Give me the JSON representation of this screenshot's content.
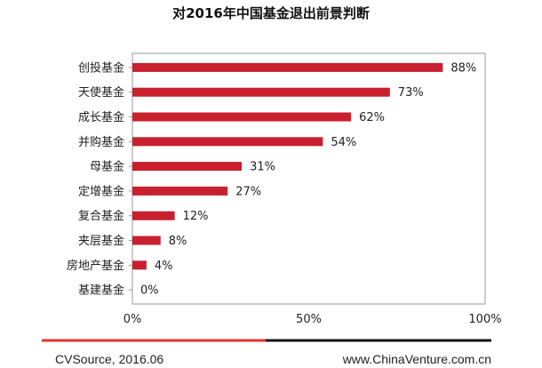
{
  "chart_data": {
    "type": "bar",
    "orientation": "horizontal",
    "title": "对2016年中国基金退出前景判断",
    "categories": [
      "创投基金",
      "天使基金",
      "成长基金",
      "并购基金",
      "母基金",
      "定增基金",
      "复合基金",
      "夹层基金",
      "房地产基金",
      "基建基金"
    ],
    "values": [
      88,
      73,
      62,
      54,
      31,
      27,
      12,
      8,
      4,
      0
    ],
    "value_labels": [
      "88%",
      "73%",
      "62%",
      "54%",
      "31%",
      "27%",
      "12%",
      "8%",
      "4%",
      "0%"
    ],
    "xlim": [
      0,
      100
    ],
    "x_ticks": [
      0,
      50,
      100
    ],
    "x_tick_labels": [
      "0%",
      "50%",
      "100%"
    ],
    "bar_color": "#c8202f",
    "grid": false
  },
  "footer": {
    "source": "CVSource, 2016.06",
    "website": "www.ChinaVenture.com.cn",
    "rule_left_color": "#e8322d",
    "rule_right_color": "#111111"
  }
}
